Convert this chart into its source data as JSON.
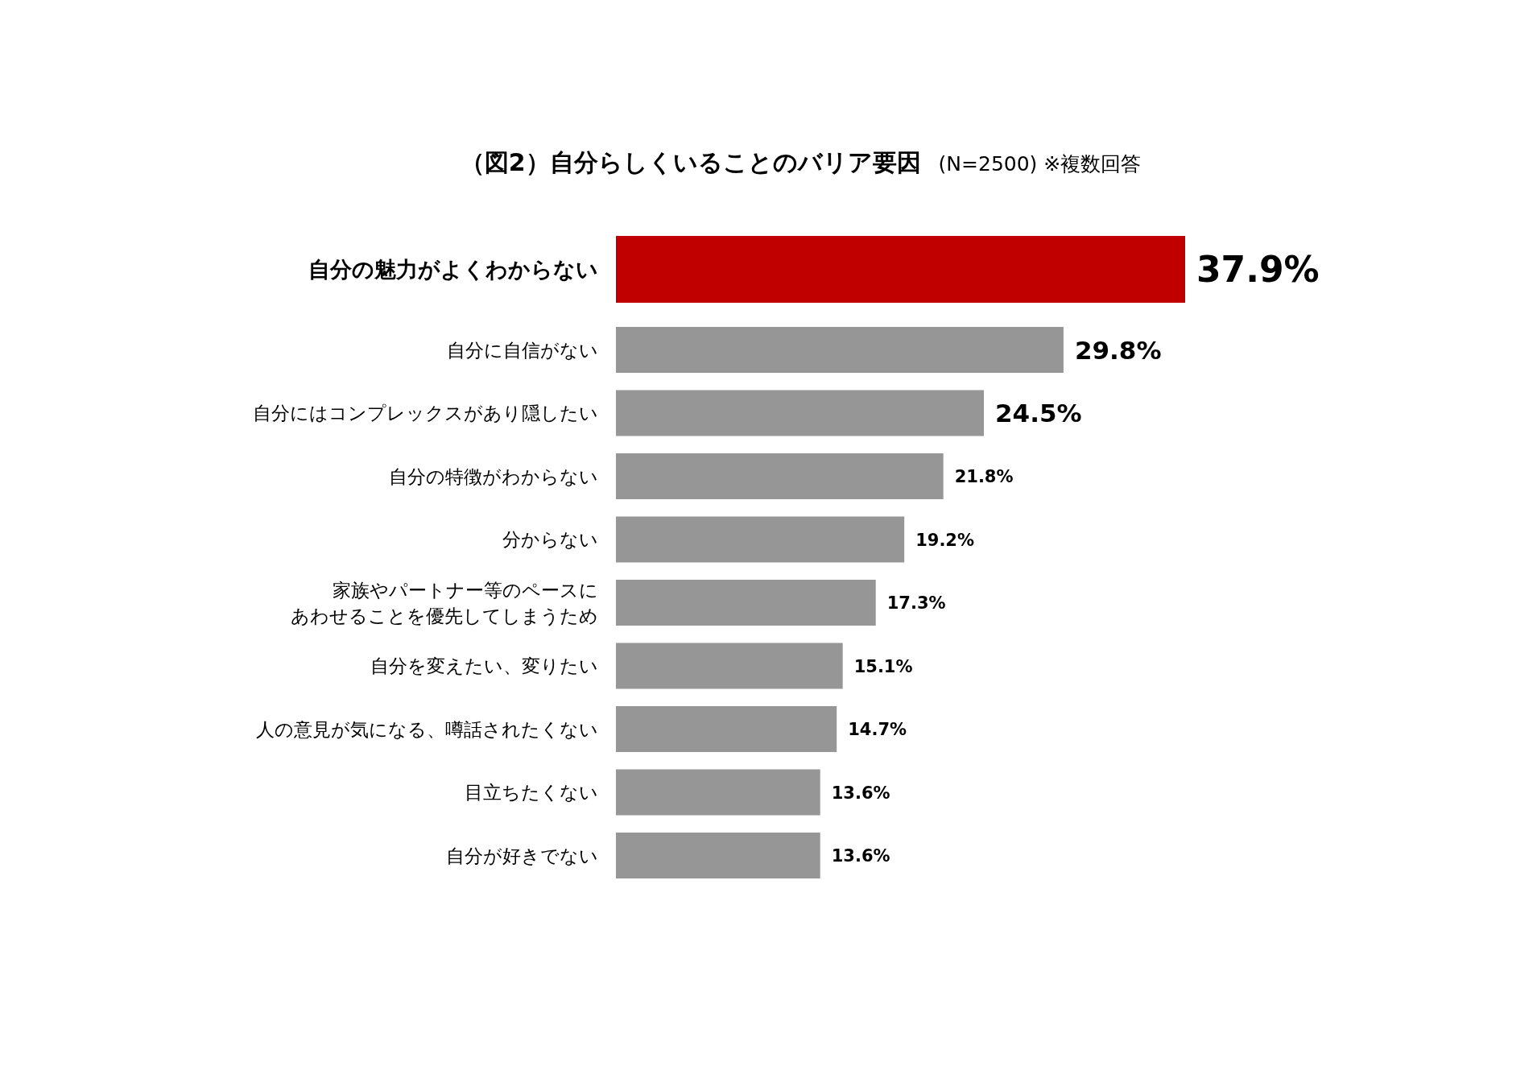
{
  "chart_data": {
    "type": "bar",
    "orientation": "horizontal",
    "title": "（図2）自分らしくいることのバリア要因",
    "subtitle": "(N=2500) ※複数回答",
    "categories": [
      "自分の魅力がよくわからない",
      "自分に自信がない",
      "自分にはコンプレックスがあり隠したい",
      "自分の特徴がわからない",
      "分からない",
      "家族やパートナー等のペースにあわせることを優先してしまうため",
      "自分を変えたい、変りたい",
      "人の意見が気になる、噂話されたくない",
      "目立ちたくない",
      "自分が好きでない"
    ],
    "values": [
      37.9,
      29.8,
      24.5,
      21.8,
      19.2,
      17.3,
      15.1,
      14.7,
      13.6,
      13.6
    ],
    "colors": [
      "#c00000",
      "#969696",
      "#969696",
      "#969696",
      "#969696",
      "#969696",
      "#969696",
      "#969696",
      "#969696",
      "#969696"
    ],
    "value_labels": [
      "37.9%",
      "29.8%",
      "24.5%",
      "21.8%",
      "19.2%",
      "17.3%",
      "15.1%",
      "14.7%",
      "13.6%",
      "13.6%"
    ]
  }
}
